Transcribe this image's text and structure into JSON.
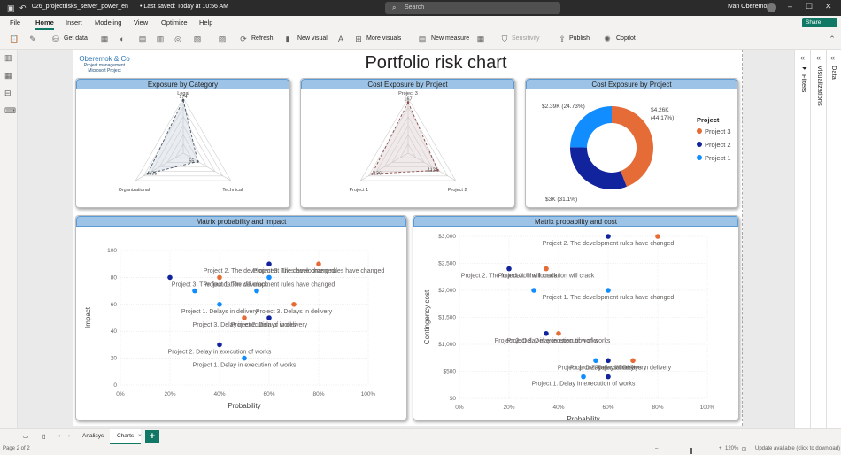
{
  "titlebar": {
    "filename": "026_projectrisks_server_power_en",
    "saved": "• Last saved: Today at 10:56 AM",
    "search_placeholder": "Search",
    "user": "Ivan Oberemok"
  },
  "menu": {
    "items": [
      "File",
      "Home",
      "Insert",
      "Modeling",
      "View",
      "Optimize",
      "Help"
    ],
    "share": "Share"
  },
  "ribbon": {
    "get_data": "Get data",
    "refresh": "Refresh",
    "new_visual": "New visual",
    "more_visuals": "More visuals",
    "new_measure": "New measure",
    "sensitivity": "Sensitivity",
    "publish": "Publish",
    "copilot": "Copilot"
  },
  "report": {
    "logo_name": "Oberemok & Co",
    "logo_sub1": "Project management",
    "logo_sub2": "Microsoft Project",
    "title": "Portfolio risk chart"
  },
  "panels": {
    "filters": "Filters",
    "visualizations": "Visualizations",
    "data": "Data"
  },
  "tabs": {
    "analysis": "Analisys",
    "charts": "Charts",
    "page_info": "Page 2 of 2",
    "zoom": "120%",
    "update": "Update available (click to download)"
  },
  "colors": {
    "project1": "#118DFF",
    "project2": "#12239E",
    "project3": "#E66C37",
    "header_bg": "#9DC3E6",
    "accent": "#117865"
  },
  "chart_data": [
    {
      "type": "radar",
      "title": "Exposure by Category",
      "axes": [
        "Legal",
        "Technical",
        "Organizational"
      ],
      "axis_value_labels": [
        "174",
        "55",
        "135"
      ],
      "values": [
        174,
        55,
        135
      ]
    },
    {
      "type": "radar",
      "title": "Cost Exposure by Project",
      "axes": [
        "Project 3",
        "Project 2",
        "Project 1"
      ],
      "axis_value_labels": [
        "167",
        "112",
        "136"
      ],
      "values": [
        167,
        112,
        136
      ]
    },
    {
      "type": "pie",
      "title": "Cost Exposure by Project",
      "legend_title": "Project",
      "legend": [
        "Project 3",
        "Project 2",
        "Project 1"
      ],
      "slices": [
        {
          "name": "Project 3",
          "value": 4.26,
          "label": "$4.26K",
          "pct_label": "(44.17%)"
        },
        {
          "name": "Project 2",
          "value": 3.0,
          "label": "$3K (31.1%)"
        },
        {
          "name": "Project 1",
          "value": 2.39,
          "label": "$2.39K (24.73%)"
        }
      ]
    },
    {
      "type": "scatter",
      "title": "Matrix probability and impact",
      "xlabel": "Probability",
      "ylabel": "Impact",
      "xlim": [
        0,
        100
      ],
      "ylim": [
        0,
        100
      ],
      "xticks": [
        "0%",
        "20%",
        "40%",
        "60%",
        "80%",
        "100%"
      ],
      "yticks": [
        "0",
        "20",
        "40",
        "60",
        "80",
        "100"
      ],
      "points": [
        {
          "label": "Project 3. The development rules have changed",
          "project": "Project 3",
          "x": 80,
          "y": 90
        },
        {
          "label": "Project 2. The development rules have changed",
          "project": "Project 2",
          "x": 60,
          "y": 90
        },
        {
          "label": "Project 3. The foundation will crack",
          "project": "Project 3",
          "x": 40,
          "y": 80
        },
        {
          "label": "",
          "project": "Project 2",
          "x": 20,
          "y": 80
        },
        {
          "label": "Project 1. The development rules have changed",
          "project": "Project 1",
          "x": 60,
          "y": 80
        },
        {
          "label": "",
          "project": "Project 1",
          "x": 30,
          "y": 70
        },
        {
          "label": "",
          "project": "Project 1",
          "x": 55,
          "y": 70
        },
        {
          "label": "Project 1. Delays in delivery",
          "project": "Project 1",
          "x": 40,
          "y": 60
        },
        {
          "label": "Project 3. Delays in delivery",
          "project": "Project 3",
          "x": 70,
          "y": 60
        },
        {
          "label": "Project 2. Delays in delivery",
          "project": "Project 2",
          "x": 60,
          "y": 50
        },
        {
          "label": "Project 3. Delay in execution of works",
          "project": "Project 3",
          "x": 50,
          "y": 50
        },
        {
          "label": "Project 2. Delay in execution of works",
          "project": "Project 2",
          "x": 40,
          "y": 30
        },
        {
          "label": "Project 1. Delay in execution of works",
          "project": "Project 1",
          "x": 50,
          "y": 20
        }
      ]
    },
    {
      "type": "scatter",
      "title": "Matrix probability and cost",
      "xlabel": "Probability",
      "ylabel": "Contingency cost",
      "xlim": [
        0,
        100
      ],
      "ylim": [
        0,
        3000
      ],
      "xticks": [
        "0%",
        "20%",
        "40%",
        "60%",
        "80%",
        "100%"
      ],
      "yticks": [
        "$0",
        "$500",
        "$1,000",
        "$1,500",
        "$2,000",
        "$2,500",
        "$3,000"
      ],
      "points": [
        {
          "label": "Project 2. The development rules have changed",
          "project": "Project 2",
          "x": 60,
          "y": 3000
        },
        {
          "label": "",
          "project": "Project 3",
          "x": 80,
          "y": 3000
        },
        {
          "label": "Project 2. The foundation will crack",
          "project": "Project 2",
          "x": 20,
          "y": 2400
        },
        {
          "label": "Project 3. The foundation will crack",
          "project": "Project 3",
          "x": 35,
          "y": 2400
        },
        {
          "label": "",
          "project": "Project 1",
          "x": 30,
          "y": 2000
        },
        {
          "label": "Project 1. The development rules have changed",
          "project": "Project 1",
          "x": 60,
          "y": 2000
        },
        {
          "label": "Project 3. Delay in execution of works",
          "project": "Project 3",
          "x": 40,
          "y": 1200
        },
        {
          "label": "Project 2. Delay in execution of works",
          "project": "Project 2",
          "x": 35,
          "y": 1200
        },
        {
          "label": "Project 1. Delays in delivery",
          "project": "Project 1",
          "x": 55,
          "y": 700
        },
        {
          "label": "Project 2. Delays in delivery",
          "project": "Project 2",
          "x": 60,
          "y": 700
        },
        {
          "label": "Project 3. Delays in delivery",
          "project": "Project 3",
          "x": 70,
          "y": 700
        },
        {
          "label": "Project 1. Delay in execution of works",
          "project": "Project 1",
          "x": 50,
          "y": 400
        },
        {
          "label": "",
          "project": "Project 2",
          "x": 60,
          "y": 400
        }
      ]
    }
  ]
}
